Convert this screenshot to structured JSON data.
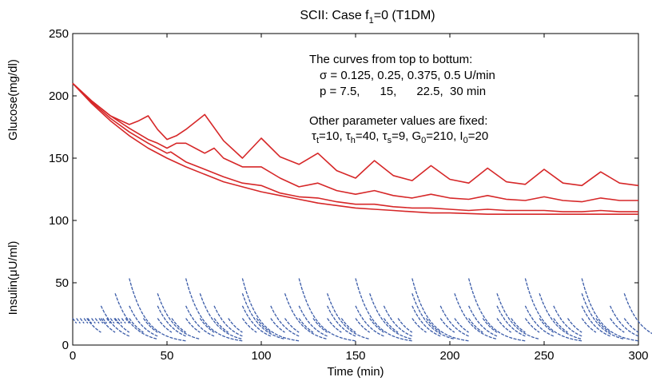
{
  "chart_data": {
    "type": "line",
    "title": "SCII: Case f",
    "title_sub": "1",
    "title_tail": "=0 (T1DM)",
    "xlabel": "Time (min)",
    "ylabel_glucose": "Glucose(mg/dl)",
    "ylabel_insulin_pre": "Insulin(",
    "ylabel_insulin_mu": "μ",
    "ylabel_insulin_post": "U/ml)",
    "xlim": [
      0,
      300
    ],
    "ylim": [
      0,
      250
    ],
    "x_ticks": [
      "0",
      "50",
      "100",
      "150",
      "200",
      "250",
      "300"
    ],
    "y_ticks": [
      "0",
      "50",
      "100",
      "150",
      "200",
      "250"
    ],
    "grid": false,
    "colors": {
      "glucose": "#d62728",
      "insulin": "#3a5ba8"
    },
    "annotation": {
      "line1": "The curves from top to bottum:",
      "line2": "σ = 0.125, 0.25, 0.375, 0.5 U/min",
      "line3": "p = 7.5,      15,      22.5,  30 min",
      "line4": "Other parameter values are fixed:",
      "params": [
        {
          "sym": "τ",
          "sub": "t",
          "val": "=10, "
        },
        {
          "sym": "τ",
          "sub": "h",
          "val": "=40, "
        },
        {
          "sym": "τ",
          "sub": "s",
          "val": "=9, "
        },
        {
          "sym": "G",
          "sub": "0",
          "val": "=210, "
        },
        {
          "sym": "I",
          "sub": "0",
          "val": "=20"
        }
      ]
    },
    "series": [
      {
        "group": "glucose",
        "x": [
          0,
          10,
          20,
          30,
          35,
          40,
          45,
          50,
          55,
          60,
          70,
          80,
          90,
          100,
          110,
          120,
          130,
          140,
          150,
          160,
          170,
          180,
          190,
          200,
          210,
          220,
          230,
          240,
          250,
          260,
          270,
          280,
          290,
          300
        ],
        "values": [
          210,
          196,
          184,
          177,
          180,
          184,
          173,
          165,
          168,
          173,
          185,
          164,
          150,
          166,
          151,
          145,
          154,
          140,
          134,
          148,
          136,
          132,
          144,
          133,
          130,
          142,
          131,
          129,
          141,
          130,
          128,
          139,
          130,
          128
        ]
      },
      {
        "group": "glucose",
        "x": [
          0,
          10,
          20,
          30,
          40,
          45,
          50,
          55,
          60,
          70,
          75,
          80,
          90,
          100,
          110,
          120,
          130,
          140,
          150,
          160,
          170,
          180,
          190,
          200,
          210,
          220,
          230,
          240,
          250,
          260,
          270,
          280,
          290,
          300
        ],
        "values": [
          210,
          196,
          184,
          174,
          165,
          162,
          158,
          162,
          162,
          154,
          158,
          150,
          143,
          143,
          134,
          127,
          130,
          124,
          121,
          124,
          120,
          118,
          121,
          118,
          117,
          120,
          117,
          116,
          119,
          116,
          115,
          118,
          116,
          116
        ]
      },
      {
        "group": "glucose",
        "x": [
          0,
          10,
          20,
          30,
          40,
          50,
          52,
          60,
          70,
          80,
          90,
          100,
          110,
          120,
          130,
          140,
          150,
          160,
          170,
          180,
          190,
          200,
          210,
          220,
          230,
          240,
          250,
          260,
          270,
          280,
          290,
          300
        ],
        "values": [
          210,
          195,
          182,
          171,
          162,
          154,
          155,
          147,
          141,
          135,
          130,
          128,
          122,
          119,
          118,
          115,
          113,
          113,
          111,
          110,
          110,
          109,
          108,
          109,
          108,
          108,
          108,
          107,
          107,
          108,
          107,
          107
        ]
      },
      {
        "group": "glucose",
        "x": [
          0,
          10,
          20,
          30,
          40,
          50,
          60,
          70,
          80,
          90,
          100,
          110,
          120,
          130,
          140,
          150,
          160,
          170,
          180,
          190,
          200,
          220,
          240,
          260,
          280,
          300
        ],
        "values": [
          210,
          194,
          180,
          168,
          158,
          150,
          143,
          137,
          131,
          127,
          123,
          120,
          117,
          114,
          112,
          110,
          109,
          108,
          107,
          106,
          106,
          105,
          105,
          105,
          105,
          105
        ]
      },
      {
        "group": "insulin",
        "decay": [
          0,
          30,
          20,
          2
        ]
      },
      {
        "group": "insulin",
        "decay": [
          7.5,
          300,
          20,
          7.5
        ]
      },
      {
        "group": "insulin",
        "decay": [
          15,
          300,
          30,
          15
        ]
      },
      {
        "group": "insulin",
        "decay": [
          22.5,
          300,
          40,
          22.5
        ]
      },
      {
        "group": "insulin",
        "decay": [
          30,
          300,
          52,
          30
        ]
      }
    ]
  }
}
